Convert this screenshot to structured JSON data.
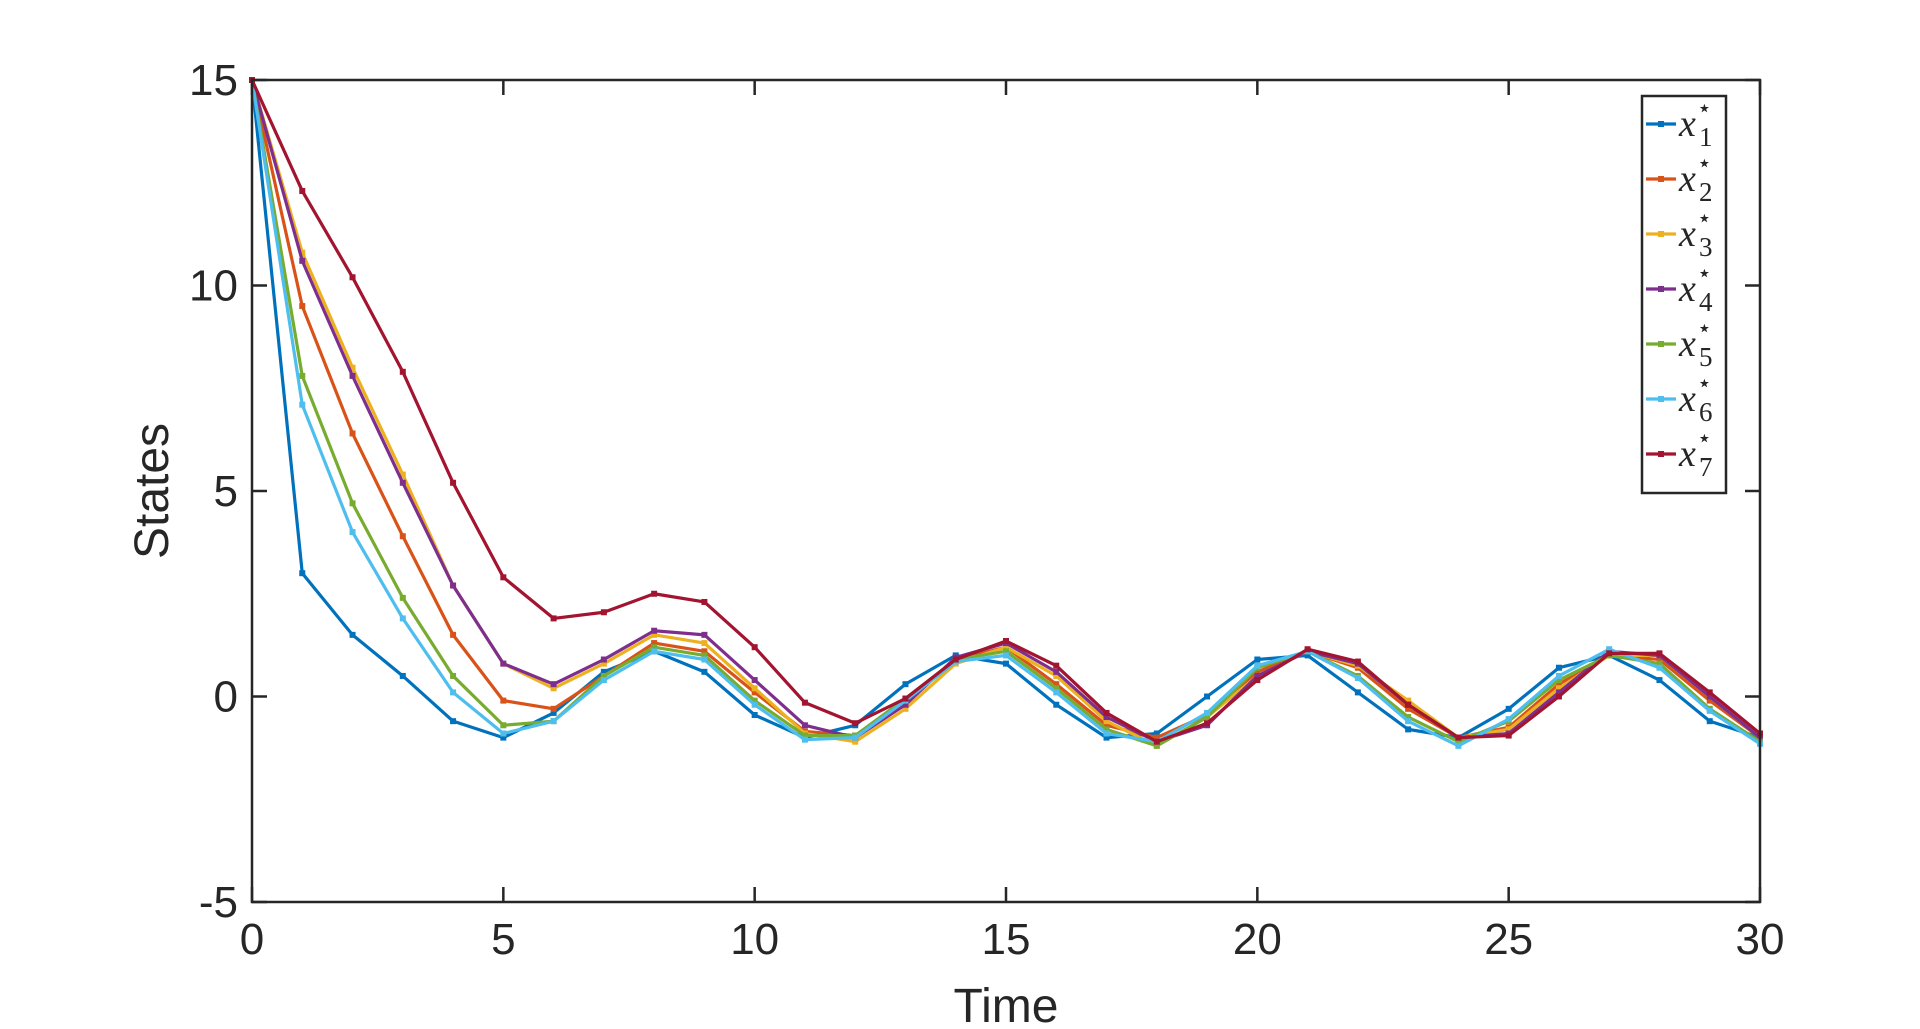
{
  "chart_data": {
    "type": "line",
    "xlabel": "Time",
    "ylabel": "States",
    "xlim": [
      0,
      30
    ],
    "ylim": [
      -5,
      15
    ],
    "xticks": [
      0,
      5,
      10,
      15,
      20,
      25,
      30
    ],
    "yticks": [
      -5,
      0,
      5,
      10,
      15
    ],
    "xtick_labels": [
      "0",
      "5",
      "10",
      "15",
      "20",
      "25",
      "30"
    ],
    "ytick_labels": [
      "-5",
      "0",
      "5",
      "10",
      "15"
    ],
    "grid": false,
    "legend_position": "top-right",
    "x": [
      0,
      1,
      2,
      3,
      4,
      5,
      6,
      7,
      8,
      9,
      10,
      11,
      12,
      13,
      14,
      15,
      16,
      17,
      18,
      19,
      20,
      21,
      22,
      23,
      24,
      25,
      26,
      27,
      28,
      29,
      30
    ],
    "series": [
      {
        "name": "x",
        "sub": "1",
        "sup": "⋆",
        "color": "#0072BD",
        "values": [
          15,
          3.0,
          1.5,
          0.5,
          -0.6,
          -1.0,
          -0.4,
          0.6,
          1.1,
          0.6,
          -0.45,
          -1.0,
          -0.7,
          0.3,
          1.0,
          0.8,
          -0.2,
          -1.0,
          -0.9,
          0.0,
          0.9,
          1.0,
          0.1,
          -0.8,
          -1.0,
          -0.3,
          0.7,
          1.0,
          0.4,
          -0.6,
          -1.0
        ]
      },
      {
        "name": "x",
        "sub": "2",
        "sup": "⋆",
        "color": "#D95319",
        "values": [
          15,
          9.5,
          6.4,
          3.9,
          1.5,
          -0.1,
          -0.3,
          0.5,
          1.3,
          1.1,
          0.1,
          -0.85,
          -0.95,
          -0.1,
          0.9,
          1.2,
          0.3,
          -0.7,
          -1.0,
          -0.45,
          0.6,
          1.1,
          0.7,
          -0.3,
          -1.0,
          -0.75,
          0.3,
          1.0,
          0.9,
          -0.1,
          -1.0
        ]
      },
      {
        "name": "x",
        "sub": "3",
        "sup": "⋆",
        "color": "#EDB120",
        "values": [
          15,
          10.8,
          8.0,
          5.4,
          2.7,
          0.8,
          0.2,
          0.8,
          1.5,
          1.3,
          0.2,
          -0.9,
          -1.1,
          -0.3,
          0.8,
          1.2,
          0.5,
          -0.6,
          -1.2,
          -0.5,
          0.5,
          1.1,
          0.75,
          -0.1,
          -1.0,
          -0.8,
          0.2,
          1.0,
          1.0,
          0.0,
          -1.0
        ]
      },
      {
        "name": "x",
        "sub": "4",
        "sup": "⋆",
        "color": "#7E2F8E",
        "values": [
          15,
          10.6,
          7.8,
          5.2,
          2.7,
          0.8,
          0.3,
          0.9,
          1.6,
          1.5,
          0.4,
          -0.7,
          -1.0,
          -0.2,
          0.95,
          1.3,
          0.6,
          -0.5,
          -1.1,
          -0.7,
          0.5,
          1.1,
          0.8,
          -0.2,
          -1.0,
          -0.9,
          0.1,
          1.1,
          1.0,
          0.0,
          -1.0
        ]
      },
      {
        "name": "x",
        "sub": "5",
        "sup": "⋆",
        "color": "#77AC30",
        "values": [
          15,
          7.8,
          4.7,
          2.4,
          0.5,
          -0.7,
          -0.6,
          0.5,
          1.2,
          1.0,
          -0.1,
          -0.95,
          -0.95,
          -0.05,
          0.9,
          1.1,
          0.2,
          -0.8,
          -1.2,
          -0.5,
          0.7,
          1.1,
          0.5,
          -0.5,
          -1.1,
          -0.6,
          0.4,
          1.0,
          0.8,
          -0.3,
          -1.1
        ]
      },
      {
        "name": "x",
        "sub": "6",
        "sup": "⋆",
        "color": "#4DBEEE",
        "values": [
          15,
          7.1,
          4.0,
          1.9,
          0.1,
          -0.9,
          -0.6,
          0.4,
          1.1,
          0.9,
          -0.2,
          -1.05,
          -1.0,
          -0.1,
          0.85,
          1.0,
          0.1,
          -0.9,
          -1.1,
          -0.4,
          0.75,
          1.1,
          0.45,
          -0.6,
          -1.2,
          -0.55,
          0.5,
          1.15,
          0.7,
          -0.35,
          -1.15
        ]
      },
      {
        "name": "x",
        "sub": "7",
        "sup": "⋆",
        "color": "#A2142F",
        "values": [
          15,
          12.3,
          10.2,
          7.9,
          5.2,
          2.9,
          1.9,
          2.05,
          2.5,
          2.3,
          1.2,
          -0.15,
          -0.65,
          -0.05,
          0.9,
          1.35,
          0.75,
          -0.4,
          -1.1,
          -0.65,
          0.4,
          1.15,
          0.85,
          -0.2,
          -1.0,
          -0.95,
          0.0,
          1.05,
          1.05,
          0.1,
          -0.9
        ]
      }
    ]
  }
}
